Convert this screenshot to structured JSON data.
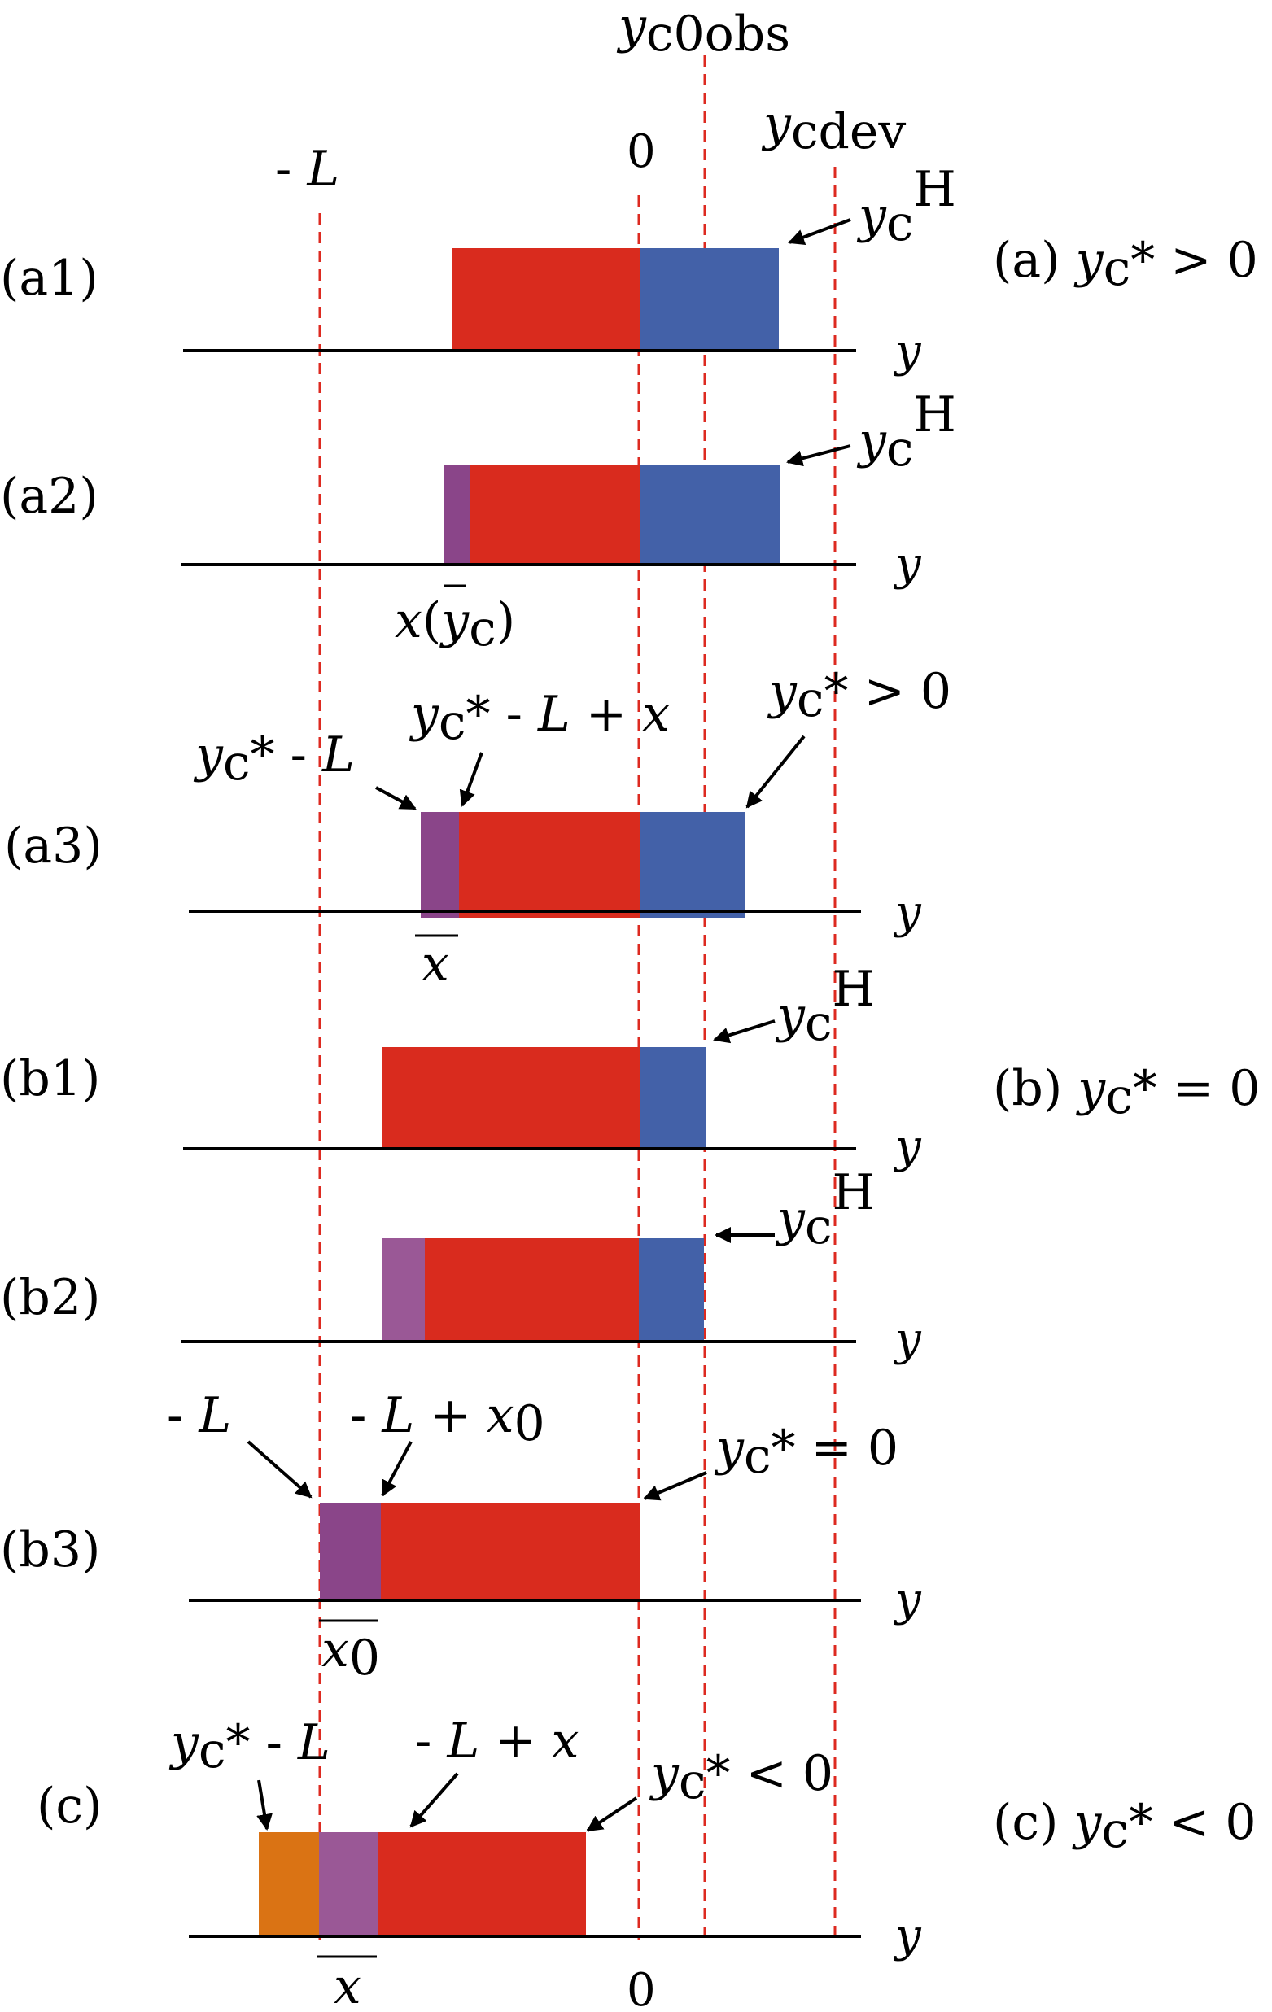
{
  "colors": {
    "red": "#d92b1e",
    "blue": "#4361a8",
    "purple": "#8a4589",
    "purple_light": "#9a5896",
    "orange": "#da7314",
    "guide": "#dd2a20",
    "axis": "#000000"
  },
  "top": {
    "yc0obs": {
      "main": "y",
      "sub": "c0obs"
    },
    "zero": "0",
    "ycdev": {
      "main": "y",
      "sub": "cdev"
    },
    "minus_L": {
      "prefix": "- ",
      "var": "L"
    }
  },
  "bottom_zero": "0",
  "groups": {
    "a": {
      "prefix": "(a) ",
      "main": "y",
      "sub": "c",
      "rest": "* > 0"
    },
    "b": {
      "prefix": "(b) ",
      "main": "y",
      "sub": "c",
      "rest": "* = 0"
    },
    "c": {
      "prefix": "(c) ",
      "main": "y",
      "sub": "c",
      "rest": "* < 0"
    }
  },
  "rows": {
    "a1": {
      "label": "(a1)",
      "axis": "y",
      "yc": "y",
      "yc_sub": "c",
      "H": "H"
    },
    "a2": {
      "label": "(a2)",
      "axis": "y",
      "yc": "y",
      "yc_sub": "c",
      "H": "H",
      "below": {
        "x": "x",
        "open": "(",
        "y": "y",
        "y_sub": "c",
        "close": ")"
      }
    },
    "a3": {
      "label": "(a3)",
      "axis": "y",
      "ann_left": {
        "main": "y",
        "sub": "c",
        "rest1": "* - ",
        "var": "L"
      },
      "ann_mid": {
        "main": "y",
        "sub": "c",
        "rest1": "* - ",
        "var": "L",
        "rest2": " + ",
        "var2": "x"
      },
      "ann_right": {
        "main": "y",
        "sub": "c",
        "rest": "* > 0"
      },
      "below": "x"
    },
    "b1": {
      "label": "(b1)",
      "axis": "y",
      "yc": "y",
      "yc_sub": "c",
      "H": "H"
    },
    "b2": {
      "label": "(b2)",
      "axis": "y",
      "yc": "y",
      "yc_sub": "c",
      "H": "H"
    },
    "b3": {
      "label": "(b3)",
      "axis": "y",
      "ann_left": {
        "prefix": "- ",
        "var": "L"
      },
      "ann_mid": {
        "prefix": "- ",
        "var": "L",
        "rest": " + ",
        "x": "x",
        "sub": "0"
      },
      "ann_right": {
        "main": "y",
        "sub": "c",
        "rest": "* = 0"
      },
      "below": {
        "x": "x",
        "sub": "0"
      }
    },
    "c": {
      "label": "(c)",
      "axis": "y",
      "ann_left": {
        "main": "y",
        "sub": "c",
        "rest1": "* - ",
        "var": "L"
      },
      "ann_mid": {
        "prefix": "- ",
        "var": "L",
        "rest": " + ",
        "x": "x"
      },
      "ann_right": {
        "main": "y",
        "sub": "c",
        "rest": "* < 0"
      },
      "below": "x"
    }
  }
}
